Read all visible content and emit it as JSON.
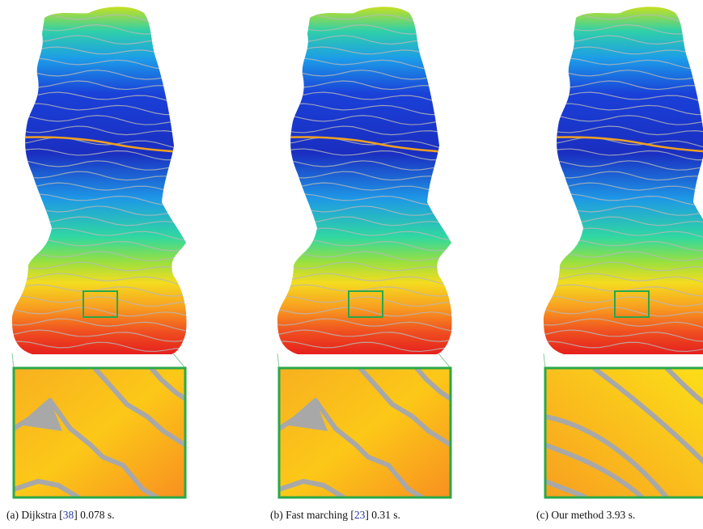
{
  "figure": {
    "panels": [
      {
        "caption": {
          "before": "(a) Dijkstra [",
          "ref": "38",
          "after": "] 0.078 s."
        }
      },
      {
        "caption": {
          "before": "(b) Fast marching [",
          "ref": "23",
          "after": "] 0.31 s."
        }
      },
      {
        "caption": {
          "before": "(c) Our method 3.93 s."
        }
      }
    ]
  }
}
